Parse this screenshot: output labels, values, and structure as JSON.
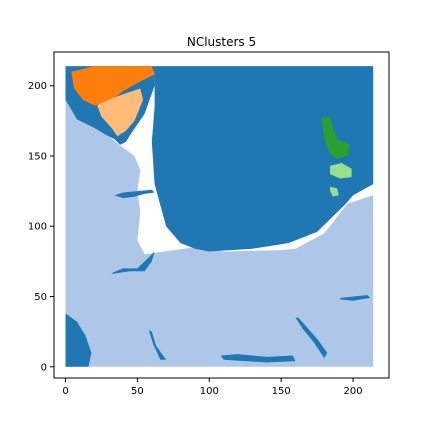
{
  "chart_data": {
    "type": "heatmap",
    "title": "NClusters 5",
    "xlabel": "",
    "ylabel": "",
    "xlim": [
      -8,
      225
    ],
    "ylim": [
      -8,
      224
    ],
    "x_ticks": [
      0,
      50,
      100,
      150,
      200
    ],
    "y_ticks": [
      0,
      50,
      100,
      150,
      200
    ],
    "grid_size": [
      214,
      214
    ],
    "grid": false,
    "legend": false,
    "clusters": [
      {
        "id": 0,
        "color": "#aec7e8",
        "regions": [
          {
            "polygon": [
              [
                0,
                0
              ],
              [
                0,
                204
              ],
              [
                20,
                180
              ],
              [
                30,
                164
              ],
              [
                40,
                156
              ],
              [
                48,
                150
              ],
              [
                50,
                145
              ],
              [
                52,
                140
              ],
              [
                50,
                125
              ],
              [
                52,
                110
              ],
              [
                50,
                90
              ],
              [
                55,
                80
              ],
              [
                90,
                85
              ],
              [
                110,
                82
              ],
              [
                150,
                83
              ],
              [
                160,
                84
              ],
              [
                180,
                95
              ],
              [
                190,
                108
              ],
              [
                196,
                116
              ],
              [
                214,
                122
              ],
              [
                214,
                0
              ]
            ]
          }
        ]
      },
      {
        "id": 1,
        "color": "#1f77b4",
        "regions": [
          {
            "polygon": [
              [
                0,
                214
              ],
              [
                0,
                190
              ],
              [
                8,
                176
              ],
              [
                20,
                170
              ],
              [
                28,
                165
              ],
              [
                34,
                162
              ],
              [
                38,
                158
              ],
              [
                42,
                160
              ],
              [
                45,
                165
              ],
              [
                55,
                180
              ],
              [
                62,
                200
              ],
              [
                62,
                214
              ]
            ]
          },
          {
            "polygon": [
              [
                62,
                214
              ],
              [
                214,
                214
              ],
              [
                214,
                130
              ],
              [
                200,
                122
              ],
              [
                195,
                116
              ],
              [
                185,
                106
              ],
              [
                175,
                96
              ],
              [
                155,
                88
              ],
              [
                130,
                84
              ],
              [
                100,
                82
              ],
              [
                90,
                84
              ],
              [
                80,
                88
              ],
              [
                70,
                100
              ],
              [
                62,
                130
              ],
              [
                60,
                160
              ],
              [
                62,
                185
              ]
            ]
          },
          {
            "polygon": [
              [
                0,
                0
              ],
              [
                0,
                38
              ],
              [
                8,
                32
              ],
              [
                14,
                22
              ],
              [
                18,
                10
              ],
              [
                16,
                0
              ]
            ]
          },
          {
            "polygon": [
              [
                34,
                122
              ],
              [
                40,
                120
              ],
              [
                48,
                121
              ],
              [
                55,
                123
              ],
              [
                62,
                124
              ],
              [
                60,
                126
              ],
              [
                50,
                125
              ],
              [
                40,
                124
              ]
            ]
          },
          {
            "polygon": [
              [
                32,
                66
              ],
              [
                45,
                68
              ],
              [
                55,
                68
              ],
              [
                60,
                75
              ],
              [
                62,
                82
              ],
              [
                58,
                78
              ],
              [
                50,
                70
              ],
              [
                40,
                70
              ],
              [
                33,
                67
              ]
            ]
          },
          {
            "polygon": [
              [
                110,
                5
              ],
              [
                140,
                3
              ],
              [
                160,
                4
              ],
              [
                158,
                8
              ],
              [
                140,
                7
              ],
              [
                120,
                9
              ],
              [
                108,
                8
              ]
            ]
          },
          {
            "polygon": [
              [
                190,
                48
              ],
              [
                200,
                47
              ],
              [
                212,
                49
              ],
              [
                210,
                51
              ],
              [
                200,
                50
              ],
              [
                192,
                49
              ]
            ]
          },
          {
            "polygon": [
              [
                60,
                25
              ],
              [
                63,
                15
              ],
              [
                70,
                5
              ],
              [
                66,
                5
              ],
              [
                61,
                16
              ],
              [
                58,
                26
              ]
            ]
          },
          {
            "polygon": [
              [
                162,
                35
              ],
              [
                168,
                28
              ],
              [
                175,
                20
              ],
              [
                182,
                10
              ],
              [
                180,
                6
              ],
              [
                173,
                17
              ],
              [
                165,
                27
              ],
              [
                160,
                35
              ]
            ]
          }
        ]
      },
      {
        "id": 2,
        "color": "#ff7f0e",
        "regions": [
          {
            "polygon": [
              [
                4,
                210
              ],
              [
                20,
                214
              ],
              [
                60,
                214
              ],
              [
                62,
                208
              ],
              [
                50,
                202
              ],
              [
                40,
                196
              ],
              [
                30,
                188
              ],
              [
                20,
                186
              ],
              [
                12,
                190
              ],
              [
                6,
                198
              ]
            ]
          }
        ]
      },
      {
        "id": 3,
        "color": "#ffbb78",
        "regions": [
          {
            "polygon": [
              [
                22,
                186
              ],
              [
                30,
                190
              ],
              [
                40,
                194
              ],
              [
                52,
                198
              ],
              [
                54,
                190
              ],
              [
                48,
                175
              ],
              [
                42,
                168
              ],
              [
                36,
                164
              ],
              [
                32,
                170
              ],
              [
                25,
                178
              ]
            ]
          }
        ]
      },
      {
        "id": 4,
        "color": "#2ca02c",
        "regions": [
          {
            "polygon": [
              [
                178,
                177
              ],
              [
                184,
                178
              ],
              [
                186,
                170
              ],
              [
                189,
                162
              ],
              [
                198,
                158
              ],
              [
                196,
                150
              ],
              [
                188,
                148
              ],
              [
                183,
                153
              ],
              [
                180,
                163
              ]
            ]
          }
        ]
      },
      {
        "id": 5,
        "color": "#98df8a",
        "regions": [
          {
            "polygon": [
              [
                184,
                143
              ],
              [
                192,
                145
              ],
              [
                199,
                141
              ],
              [
                199,
                135
              ],
              [
                191,
                134
              ],
              [
                184,
                137
              ]
            ]
          },
          {
            "polygon": [
              [
                184,
                128
              ],
              [
                189,
                127
              ],
              [
                190,
                122
              ],
              [
                186,
                121
              ],
              [
                184,
                125
              ]
            ]
          }
        ]
      }
    ]
  }
}
